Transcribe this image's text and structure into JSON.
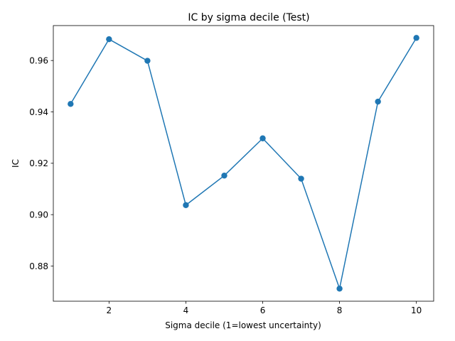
{
  "chart_data": {
    "type": "line",
    "title": "IC by sigma decile (Test)",
    "xlabel": "Sigma decile (1=lowest uncertainty)",
    "ylabel": "IC",
    "x": [
      1,
      2,
      3,
      4,
      5,
      6,
      7,
      8,
      9,
      10
    ],
    "series": [
      {
        "values": [
          0.9431,
          0.9683,
          0.9599,
          0.9037,
          0.9152,
          0.9297,
          0.914,
          0.8712,
          0.944,
          0.9688
        ]
      }
    ],
    "xlim": [
      0.55,
      10.45
    ],
    "ylim": [
      0.8663,
      0.9736
    ],
    "xticks": [
      2,
      4,
      6,
      8,
      10
    ],
    "xtick_labels": [
      "2",
      "4",
      "6",
      "8",
      "10"
    ],
    "yticks": [
      0.88,
      0.9,
      0.92,
      0.94,
      0.96
    ],
    "ytick_labels": [
      "0.88",
      "0.90",
      "0.92",
      "0.94",
      "0.96"
    ],
    "grid": false,
    "marker": "circle",
    "colors": {
      "line": "#1f77b4",
      "marker": "#1f77b4"
    }
  }
}
